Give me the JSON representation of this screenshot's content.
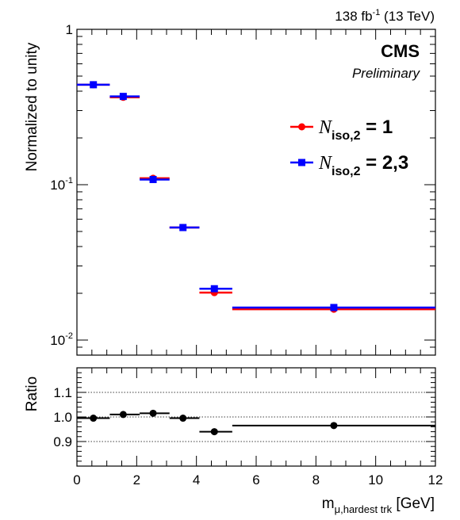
{
  "header": {
    "lumi_main": "138 fb",
    "lumi_exp": "-1",
    "lumi_tail": " (13 TeV)",
    "experiment": "CMS",
    "status": "Preliminary"
  },
  "colors": {
    "series1": "#ff0000",
    "series2": "#0000ff",
    "ratio": "#000000",
    "frame": "#000000"
  },
  "chart_data": [
    {
      "type": "scatter",
      "yscale": "log",
      "ylabel": "Normalized to unity",
      "ylim": [
        0.008,
        1
      ],
      "xlim": [
        0,
        12
      ],
      "ytick_labels": [
        {
          "value": 1,
          "base": "1",
          "exp": ""
        },
        {
          "value": 0.1,
          "base": "10",
          "exp": "-1"
        },
        {
          "value": 0.01,
          "base": "10",
          "exp": "-2"
        }
      ],
      "legend": {
        "position": "right",
        "entries": [
          {
            "symbol": "N",
            "subscript": "iso,2",
            "tail": " = 1",
            "color": "#ff0000",
            "marker": "circle"
          },
          {
            "symbol": "N",
            "subscript": "iso,2",
            "tail": " = 2,3",
            "color": "#0000ff",
            "marker": "square"
          }
        ]
      },
      "series": [
        {
          "color": "#ff0000",
          "marker": "circle",
          "points": [
            {
              "x": 0.55,
              "xlo": 0,
              "xhi": 1.1,
              "y": 0.44
            },
            {
              "x": 1.55,
              "xlo": 1.1,
              "xhi": 2.1,
              "y": 0.365
            },
            {
              "x": 2.55,
              "xlo": 2.1,
              "xhi": 3.1,
              "y": 0.11
            },
            {
              "x": 3.55,
              "xlo": 3.1,
              "xhi": 4.1,
              "y": 0.053
            },
            {
              "x": 4.6,
              "xlo": 4.1,
              "xhi": 5.2,
              "y": 0.0202
            },
            {
              "x": 8.6,
              "xlo": 5.2,
              "xhi": 12,
              "y": 0.0158
            }
          ]
        },
        {
          "color": "#0000ff",
          "marker": "square",
          "points": [
            {
              "x": 0.55,
              "xlo": 0,
              "xhi": 1.1,
              "y": 0.44
            },
            {
              "x": 1.55,
              "xlo": 1.1,
              "xhi": 2.1,
              "y": 0.37
            },
            {
              "x": 2.55,
              "xlo": 2.1,
              "xhi": 3.1,
              "y": 0.108
            },
            {
              "x": 3.55,
              "xlo": 3.1,
              "xhi": 4.1,
              "y": 0.053
            },
            {
              "x": 4.6,
              "xlo": 4.1,
              "xhi": 5.2,
              "y": 0.0214
            },
            {
              "x": 8.6,
              "xlo": 5.2,
              "xhi": 12,
              "y": 0.0162
            }
          ]
        }
      ]
    },
    {
      "type": "scatter",
      "ylabel": "Ratio",
      "xlabel_main": "m",
      "xlabel_sub": "μ,hardest trk",
      "xlabel_tail": " [GeV]",
      "xlim": [
        0,
        12
      ],
      "ylim": [
        0.8,
        1.2
      ],
      "xticks": [
        "0",
        "2",
        "4",
        "6",
        "8",
        "10",
        "12"
      ],
      "yticks": [
        "0.9",
        "1.0",
        "1.1"
      ],
      "reference_lines": [
        0.9,
        1.0,
        1.1
      ],
      "series": [
        {
          "color": "#000000",
          "marker": "circle",
          "points": [
            {
              "x": 0.55,
              "xlo": 0,
              "xhi": 1.1,
              "y": 0.995
            },
            {
              "x": 1.55,
              "xlo": 1.1,
              "xhi": 2.1,
              "y": 1.01
            },
            {
              "x": 2.55,
              "xlo": 2.1,
              "xhi": 3.1,
              "y": 1.015
            },
            {
              "x": 3.55,
              "xlo": 3.1,
              "xhi": 4.1,
              "y": 0.995
            },
            {
              "x": 4.6,
              "xlo": 4.1,
              "xhi": 5.2,
              "y": 0.94
            },
            {
              "x": 8.6,
              "xlo": 5.2,
              "xhi": 12,
              "y": 0.965
            }
          ]
        }
      ]
    }
  ]
}
